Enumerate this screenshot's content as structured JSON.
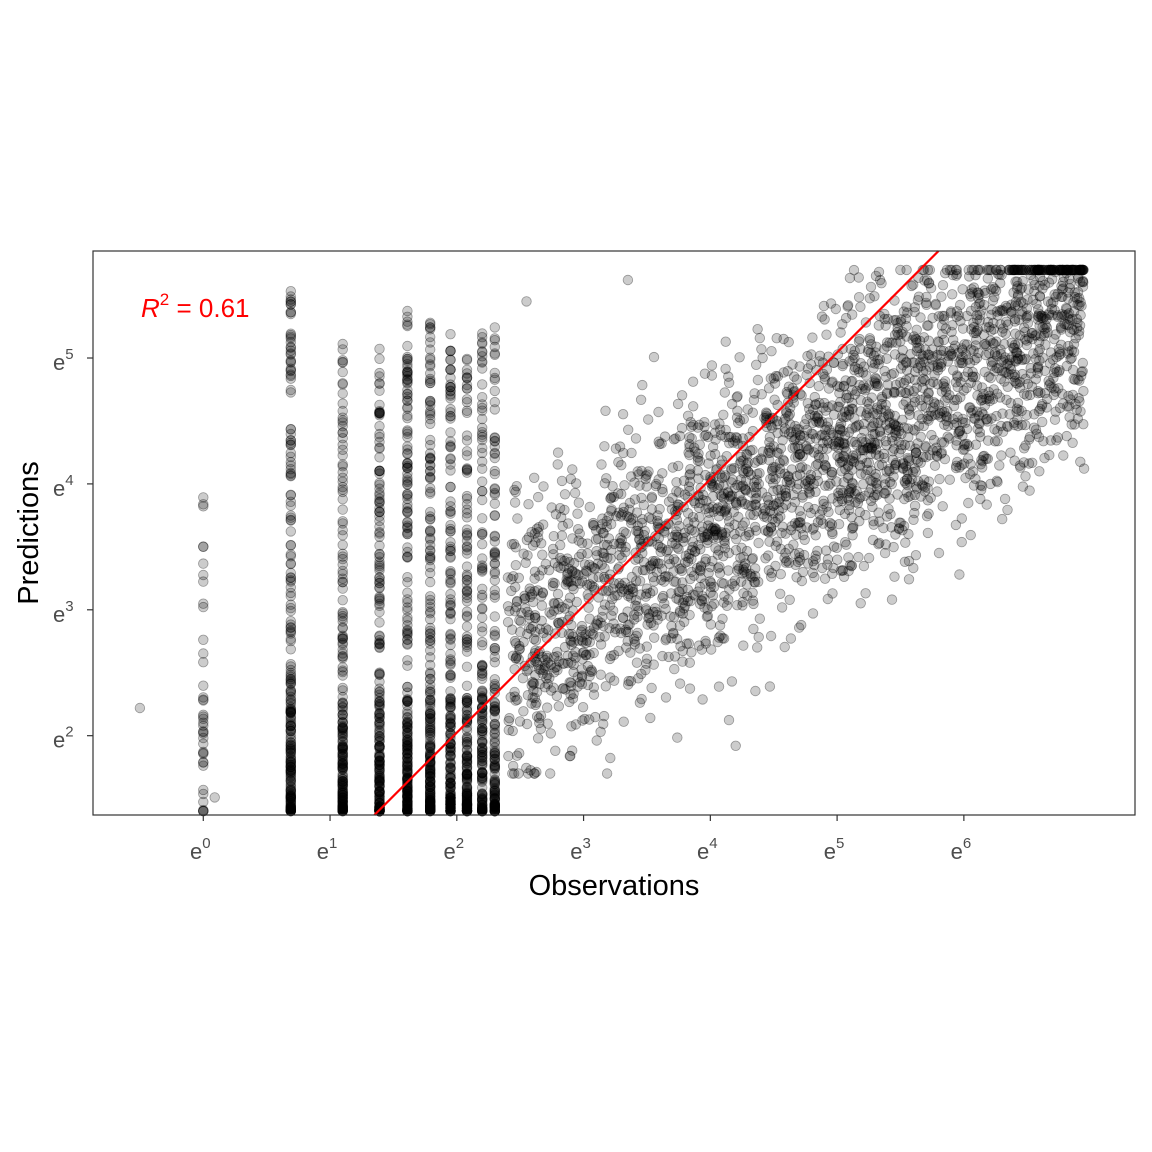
{
  "chart_data": {
    "type": "scatter",
    "title": "",
    "xlabel": "Observations",
    "ylabel": "Predictions",
    "x_scale": "log",
    "y_scale": "log",
    "log_base": "e",
    "xlim_exponent": [
      -0.87,
      7.35
    ],
    "ylim_exponent": [
      1.37,
      5.85
    ],
    "x_ticks": [
      {
        "base": "e",
        "exp": "0",
        "value": 0
      },
      {
        "base": "e",
        "exp": "1",
        "value": 1
      },
      {
        "base": "e",
        "exp": "2",
        "value": 2
      },
      {
        "base": "e",
        "exp": "3",
        "value": 3
      },
      {
        "base": "e",
        "exp": "4",
        "value": 4
      },
      {
        "base": "e",
        "exp": "5",
        "value": 5
      },
      {
        "base": "e",
        "exp": "6",
        "value": 6
      }
    ],
    "y_ticks": [
      {
        "base": "e",
        "exp": "2",
        "value": 2
      },
      {
        "base": "e",
        "exp": "3",
        "value": 3
      },
      {
        "base": "e",
        "exp": "4",
        "value": 4
      },
      {
        "base": "e",
        "exp": "5",
        "value": 5
      }
    ],
    "grid": false,
    "point_color": "#000000",
    "point_fill_opacity": 0.2,
    "point_count_estimate": 4000,
    "annotation": {
      "symbol": "R",
      "superscript": "2",
      "text": " = 0.61",
      "color": "#ff0000",
      "position": "top-left"
    },
    "reference_line": {
      "color": "#ff0000",
      "from": [
        1.35,
        1.37
      ],
      "to": [
        5.8,
        5.85
      ],
      "description": "1:1 line"
    },
    "clusters": [
      {
        "name": "column-1",
        "x": 0,
        "y_range": [
          1.4,
          4.02
        ],
        "n": 40
      },
      {
        "name": "column-2",
        "x": 0.69,
        "y_range": [
          1.4,
          5.55
        ],
        "n": 220
      },
      {
        "name": "column-3",
        "x": 1.1,
        "y_range": [
          1.4,
          5.12
        ],
        "n": 200
      },
      {
        "name": "column-4",
        "x": 1.39,
        "y_range": [
          1.4,
          5.08
        ],
        "n": 230
      },
      {
        "name": "column-5",
        "x": 1.61,
        "y_range": [
          1.4,
          5.38
        ],
        "n": 240
      },
      {
        "name": "column-6",
        "x": 1.79,
        "y_range": [
          1.4,
          5.28
        ],
        "n": 230
      },
      {
        "name": "column-7",
        "x": 1.95,
        "y_range": [
          1.4,
          5.2
        ],
        "n": 200
      },
      {
        "name": "column-8",
        "x": 2.08,
        "y_range": [
          1.4,
          5.02
        ],
        "n": 180
      },
      {
        "name": "column-9",
        "x": 2.2,
        "y_range": [
          1.4,
          5.3
        ],
        "n": 160
      },
      {
        "name": "column-10",
        "x": 2.3,
        "y_range": [
          1.4,
          5.3
        ],
        "n": 150
      },
      {
        "name": "main-cloud",
        "x_range": [
          2.4,
          6.95
        ],
        "y_range": [
          1.7,
          5.7
        ],
        "center_slope": 0.6,
        "n": 2900
      }
    ],
    "outliers": [
      {
        "x": -0.5,
        "y": 2.22
      },
      {
        "x": 0.09,
        "y": 1.51
      },
      {
        "x": 2.55,
        "y": 5.45
      },
      {
        "x": 3.35,
        "y": 5.62
      },
      {
        "x": 6.85,
        "y": 5.0
      },
      {
        "x": 4.2,
        "y": 1.92
      }
    ]
  }
}
